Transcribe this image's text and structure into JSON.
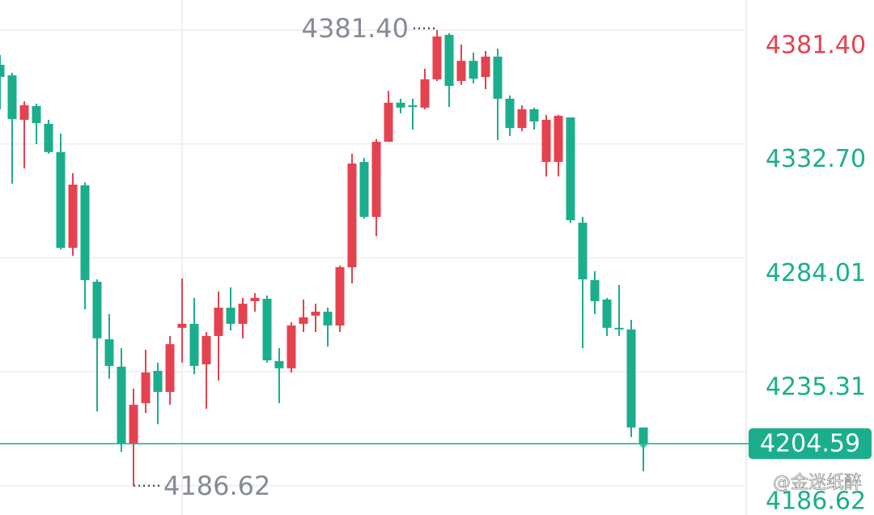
{
  "chart_data": {
    "type": "candlestick",
    "up_color": "#e5424f",
    "down_color": "#1bae8c",
    "ylim": [
      4174.1,
      4394.2
    ],
    "yticks": [
      {
        "value": 4381.4,
        "label": "4381.40"
      },
      {
        "value": 4332.7,
        "label": "4332.70"
      },
      4284.01,
      4235.31,
      4186.62
    ],
    "grid": true,
    "series": [
      {
        "open": [
          4366.5,
          4362.0,
          4343.0,
          4348.9,
          4341.3,
          4329.2,
          4288.3,
          4315.0,
          4273.8,
          4249.2,
          4237.5,
          4204.6,
          4221.9,
          4235.7,
          4226.7,
          4254.1,
          4255.8,
          4238.5,
          4250.6,
          4262.7,
          4255.8,
          4265.5,
          4266.5,
          4239.9,
          4236.8,
          4255.8,
          4259.3,
          4261.0,
          4255.1,
          4280.0,
          4325.0,
          4301.5,
          4333.6,
          4350.3,
          4349.2,
          4348.2,
          4360.3,
          4379.3,
          4359.6,
          4368.2,
          4361.3,
          4370.0,
          4352.0,
          4339.5,
          4347.5,
          4325.0,
          4325.0,
          4344.0,
          4299.0,
          4274.5,
          4266.2,
          4254.1,
          4253.4,
          4211.5
        ],
        "high": [
          4370.7,
          4363.1,
          4350.9,
          4349.9,
          4343.0,
          4337.1,
          4320.2,
          4316.3,
          4274.8,
          4260.0,
          4245.4,
          4228.1,
          4244.7,
          4239.2,
          4250.6,
          4275.2,
          4266.9,
          4252.3,
          4269.6,
          4271.4,
          4266.9,
          4268.9,
          4267.9,
          4245.4,
          4256.5,
          4266.2,
          4264.4,
          4262.7,
          4280.7,
          4328.5,
          4326.7,
          4334.7,
          4355.4,
          4352.0,
          4352.0,
          4364.8,
          4381.4,
          4380.0,
          4375.2,
          4371.7,
          4372.4,
          4373.4,
          4353.4,
          4349.2,
          4348.2,
          4345.1,
          4345.1,
          4344.0,
          4301.5,
          4278.3,
          4266.9,
          4272.4,
          4257.5,
          4211.5
        ],
        "low": [
          4347.5,
          4315.7,
          4322.2,
          4332.6,
          4328.5,
          4287.6,
          4284.9,
          4262.0,
          4218.4,
          4232.3,
          4201.1,
          4186.62,
          4217.7,
          4212.9,
          4221.2,
          4239.2,
          4234.3,
          4219.5,
          4231.6,
          4253.0,
          4249.6,
          4261.0,
          4239.2,
          4221.9,
          4235.0,
          4252.3,
          4252.3,
          4246.1,
          4252.3,
          4273.1,
          4300.8,
          4293.2,
          4333.6,
          4345.8,
          4338.8,
          4347.5,
          4359.6,
          4348.5,
          4357.9,
          4358.6,
          4356.1,
          4334.3,
          4336.1,
          4338.1,
          4338.8,
          4318.8,
          4318.8,
          4299.0,
          4245.4,
          4260.0,
          4250.6,
          4250.6,
          4207.4,
          4192.8
        ],
        "close": [
          4361.3,
          4343.3,
          4349.2,
          4341.6,
          4329.2,
          4288.3,
          4315.3,
          4274.5,
          4249.6,
          4237.8,
          4204.6,
          4221.2,
          4235.0,
          4226.7,
          4247.1,
          4255.8,
          4237.8,
          4250.6,
          4262.7,
          4255.8,
          4264.4,
          4266.9,
          4240.2,
          4236.8,
          4255.1,
          4258.6,
          4261.0,
          4255.1,
          4280.0,
          4324.3,
          4301.5,
          4333.6,
          4350.3,
          4348.2,
          4348.5,
          4360.3,
          4378.6,
          4357.5,
          4368.2,
          4360.6,
          4370.0,
          4352.0,
          4339.5,
          4347.5,
          4342.3,
          4343.0,
          4344.7,
          4300.1,
          4274.8,
          4265.5,
          4254.1,
          4253.4,
          4211.5,
          4204.59
        ]
      }
    ],
    "current_price": 4204.59,
    "high_marker": {
      "value": 4381.4,
      "label": "4381.40"
    },
    "low_marker": 4186.62,
    "watermark": "@金迷纸醉"
  }
}
